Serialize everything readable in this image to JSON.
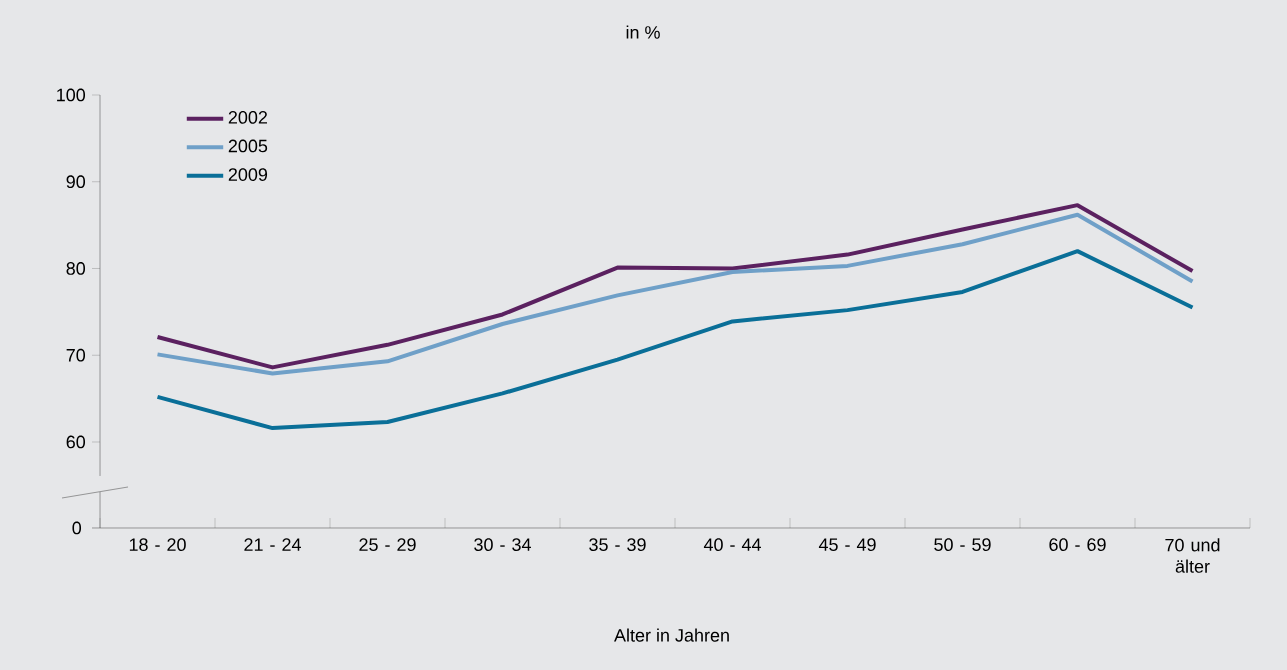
{
  "chart_data": {
    "type": "line",
    "title": "in %",
    "xlabel": "Alter in Jahren",
    "categories": [
      "18 - 20",
      "21 - 24",
      "25 - 29",
      "30 - 34",
      "35 - 39",
      "40 - 44",
      "45 - 49",
      "50 - 59",
      "60 - 69",
      "70 und älter"
    ],
    "series": [
      {
        "name": "2002",
        "color": "#5b2160",
        "values": [
          72.1,
          68.6,
          71.2,
          74.7,
          80.1,
          80.0,
          81.6,
          84.5,
          87.3,
          79.7
        ]
      },
      {
        "name": "2005",
        "color": "#6fa0c8",
        "values": [
          70.1,
          67.9,
          69.3,
          73.6,
          76.9,
          79.6,
          80.3,
          82.8,
          86.2,
          78.5
        ]
      },
      {
        "name": "2009",
        "color": "#0a6f98",
        "values": [
          65.2,
          61.6,
          62.3,
          65.6,
          69.5,
          73.9,
          75.2,
          77.3,
          82.0,
          75.5
        ]
      }
    ],
    "annotations": [
      "0"
    ],
    "ylim": [
      60,
      100
    ],
    "yticks": [
      60,
      70,
      80,
      90,
      100
    ],
    "grid": false,
    "legend": "top left",
    "marker": "none",
    "line_style": "solid"
  }
}
